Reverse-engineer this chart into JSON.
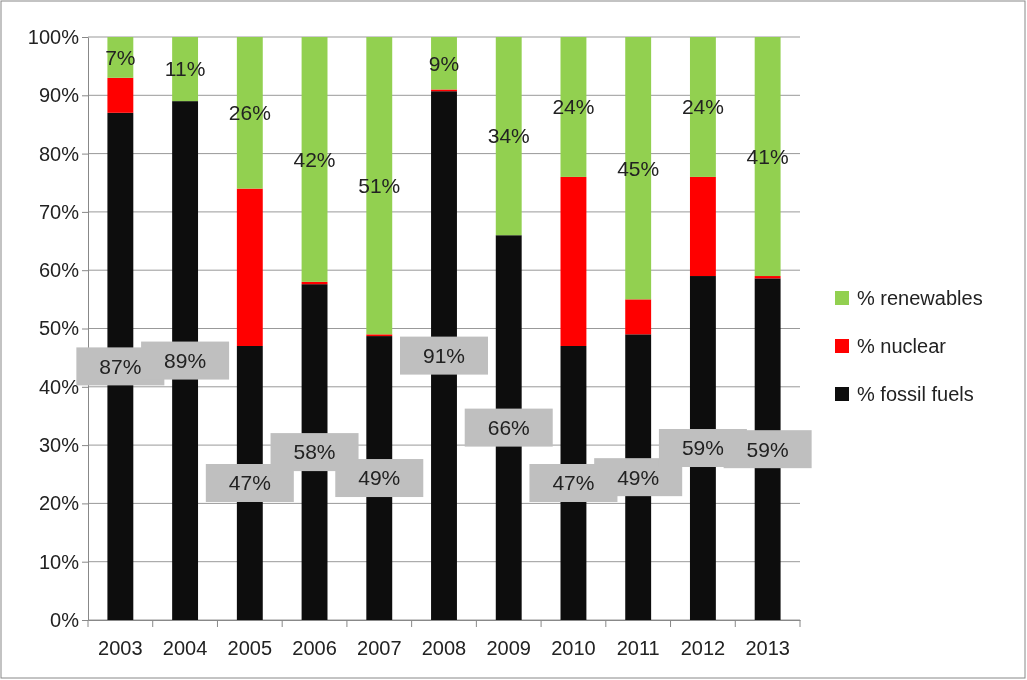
{
  "chart_data": {
    "type": "bar",
    "stacked": true,
    "categories": [
      "2003",
      "2004",
      "2005",
      "2006",
      "2007",
      "2008",
      "2009",
      "2010",
      "2011",
      "2012",
      "2013"
    ],
    "series": [
      {
        "name": "% fossil fuels",
        "color": "#0d0d0d",
        "values": [
          87,
          89,
          47,
          57.6,
          48.7,
          90.7,
          66,
          47,
          49,
          59,
          58.6
        ],
        "value_labels": [
          "87%",
          "89%",
          "47%",
          "58%",
          "49%",
          "91%",
          "66%",
          "47%",
          "49%",
          "59%",
          "59%"
        ]
      },
      {
        "name": "% nuclear",
        "color": "#ff0000",
        "values": [
          6,
          0,
          27,
          0.4,
          0.3,
          0.3,
          0,
          29,
          6,
          17,
          0.4
        ]
      },
      {
        "name": "% renewables",
        "color": "#92d050",
        "values": [
          7,
          11,
          26,
          42,
          51,
          9,
          34,
          24,
          45,
          24,
          41
        ],
        "value_labels": [
          "7%",
          "11%",
          "26%",
          "42%",
          "51%",
          "9%",
          "34%",
          "24%",
          "45%",
          "24%",
          "41%"
        ]
      }
    ],
    "ylim": [
      0,
      100
    ],
    "yticks": [
      {
        "value": 0,
        "label": "0%"
      },
      {
        "value": 10,
        "label": "10%"
      },
      {
        "value": 20,
        "label": "20%"
      },
      {
        "value": 30,
        "label": "30%"
      },
      {
        "value": 40,
        "label": "40%"
      },
      {
        "value": 50,
        "label": "50%"
      },
      {
        "value": 60,
        "label": "60%"
      },
      {
        "value": 70,
        "label": "70%"
      },
      {
        "value": 80,
        "label": "80%"
      },
      {
        "value": 90,
        "label": "90%"
      },
      {
        "value": 100,
        "label": "100%"
      }
    ],
    "grid": "y",
    "legend": "right"
  }
}
